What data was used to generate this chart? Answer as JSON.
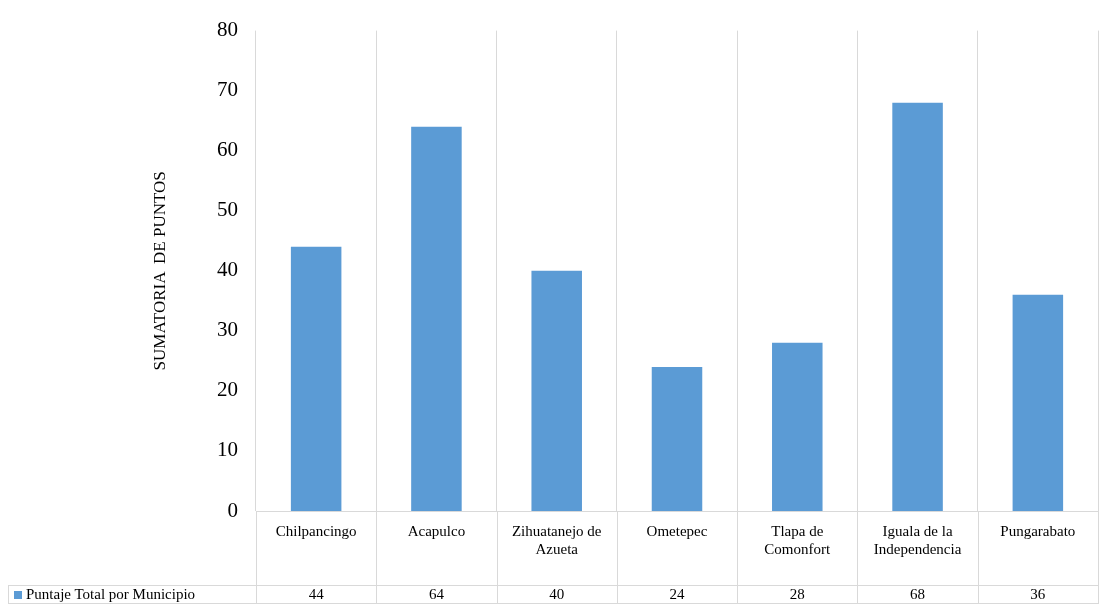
{
  "chart_data": {
    "type": "bar",
    "ylabel": "SUMATORIA  DE PUNTOS",
    "categories": [
      "Chilpancingo",
      "Acapulco",
      "Zihuatanejo de Azueta",
      "Ometepec",
      "Tlapa de Comonfort",
      "Iguala de la Independencia",
      "Pungarabato"
    ],
    "series": [
      {
        "name": "Puntaje Total por Municipio",
        "color": "#5b9bd5",
        "values": [
          44,
          64,
          40,
          24,
          28,
          68,
          36
        ]
      }
    ],
    "ylim": [
      0,
      80
    ],
    "yticks": [
      0,
      10,
      20,
      30,
      40,
      50,
      60,
      70,
      80
    ],
    "grid": "x",
    "legend": "bottom left",
    "data_labels": true
  }
}
